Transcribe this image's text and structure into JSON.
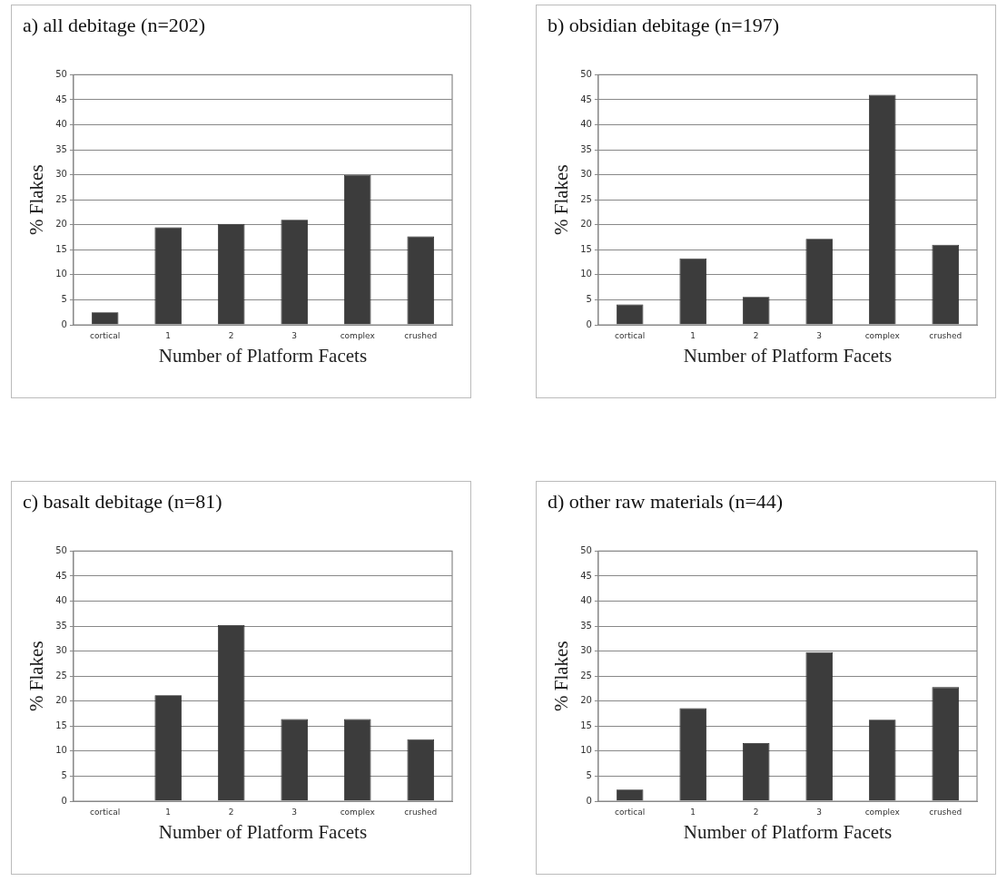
{
  "chart_data": [
    {
      "type": "bar",
      "title": "a) all debitage (n=202)",
      "xlabel": "Number of Platform Facets",
      "ylabel": "% Flakes",
      "categories": [
        "cortical",
        "1",
        "2",
        "3",
        "complex",
        "crushed"
      ],
      "values": [
        2.5,
        19.5,
        20.2,
        21,
        30,
        17.7
      ],
      "color": "#3c3c3c",
      "ylim": [
        0,
        50
      ],
      "yticks": [
        0,
        5,
        10,
        15,
        20,
        25,
        30,
        35,
        40,
        45,
        50
      ],
      "grid": "y",
      "legend": false
    },
    {
      "type": "bar",
      "title": "b) obsidian debitage (n=197)",
      "xlabel": "Number of Platform Facets",
      "ylabel": "% Flakes",
      "categories": [
        "cortical",
        "1",
        "2",
        "3",
        "complex",
        "crushed"
      ],
      "values": [
        4.1,
        13.3,
        5.6,
        17.2,
        46,
        16
      ],
      "color": "#3c3c3c",
      "ylim": [
        0,
        50
      ],
      "yticks": [
        0,
        5,
        10,
        15,
        20,
        25,
        30,
        35,
        40,
        45,
        50
      ],
      "grid": "y",
      "legend": false
    },
    {
      "type": "bar",
      "title": "c) basalt debitage (n=81)",
      "xlabel": "Number of Platform Facets",
      "ylabel": "% Flakes",
      "categories": [
        "cortical",
        "1",
        "2",
        "3",
        "complex",
        "crushed"
      ],
      "values": [
        0,
        21.2,
        35.2,
        16.4,
        16.4,
        12.4
      ],
      "color": "#3c3c3c",
      "ylim": [
        0,
        50
      ],
      "yticks": [
        0,
        5,
        10,
        15,
        20,
        25,
        30,
        35,
        40,
        45,
        50
      ],
      "grid": "y",
      "legend": false
    },
    {
      "type": "bar",
      "title": "d) other raw materials (n=44)",
      "xlabel": "Number of Platform Facets",
      "ylabel": "% Flakes",
      "categories": [
        "cortical",
        "1",
        "2",
        "3",
        "complex",
        "crushed"
      ],
      "values": [
        2.3,
        18.6,
        11.6,
        29.8,
        16.3,
        22.8
      ],
      "color": "#3c3c3c",
      "ylim": [
        0,
        50
      ],
      "yticks": [
        0,
        5,
        10,
        15,
        20,
        25,
        30,
        35,
        40,
        45,
        50
      ],
      "grid": "y",
      "legend": false
    }
  ]
}
